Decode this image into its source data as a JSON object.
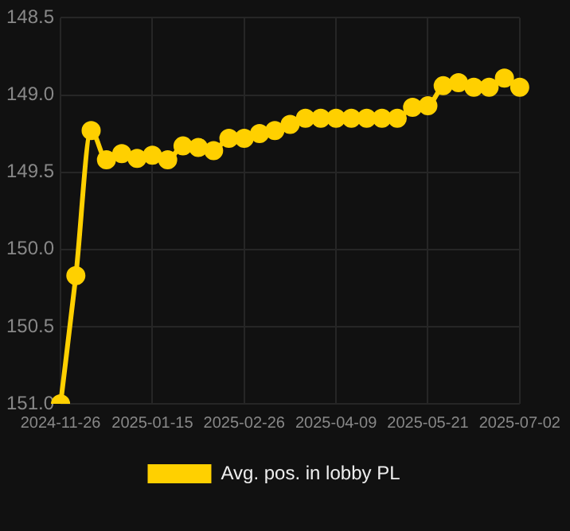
{
  "chart_data": {
    "type": "line",
    "categories": [
      "2024-11-26",
      null,
      null,
      null,
      null,
      null,
      "2025-01-15",
      null,
      null,
      null,
      null,
      null,
      "2025-02-26",
      null,
      null,
      null,
      null,
      null,
      "2025-04-09",
      null,
      null,
      null,
      null,
      null,
      "2025-05-21",
      null,
      null,
      null,
      null,
      null,
      "2025-07-02"
    ],
    "series": [
      {
        "name": "Avg. pos. in lobby PL",
        "color": "#ffd000",
        "values": [
          151.0,
          150.17,
          149.23,
          149.42,
          149.38,
          149.41,
          149.39,
          149.42,
          149.33,
          149.34,
          149.36,
          149.28,
          149.28,
          149.25,
          149.23,
          149.19,
          149.15,
          149.15,
          149.15,
          149.15,
          149.15,
          149.15,
          149.15,
          149.08,
          149.07,
          148.94,
          148.92,
          148.95,
          148.95,
          148.89,
          148.95
        ]
      }
    ],
    "ylim": [
      151.0,
      148.5
    ],
    "yticks": [
      {
        "value": 151.0,
        "label": "151.0"
      },
      {
        "value": 150.5,
        "label": "150.5"
      },
      {
        "value": 150.0,
        "label": "150.0"
      },
      {
        "value": 149.5,
        "label": "149.5"
      },
      {
        "value": 149.0,
        "label": "149.0"
      },
      {
        "value": 148.5,
        "label": "148.5"
      }
    ],
    "grid": true,
    "legend": "bottom",
    "marker": "circle",
    "line_style": "solid"
  }
}
